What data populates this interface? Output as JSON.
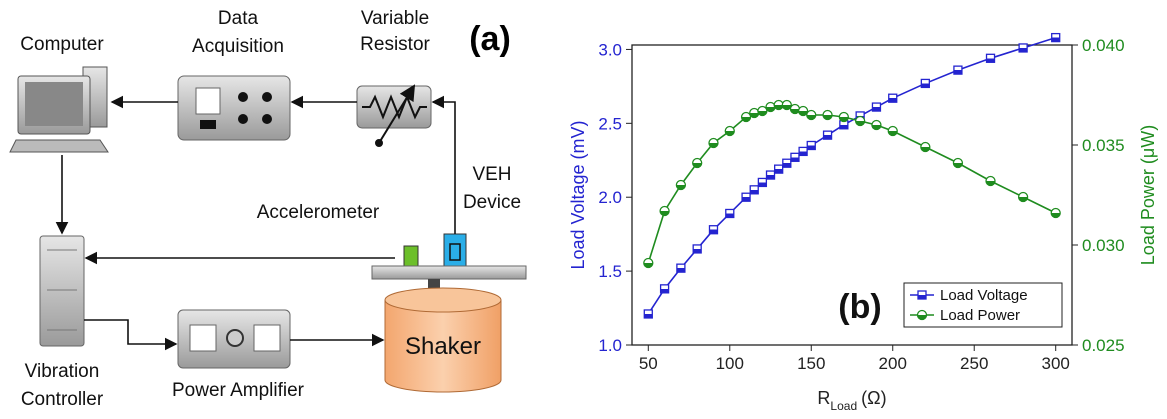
{
  "diagram": {
    "panel_label": "(a)",
    "nodes": [
      {
        "label": [
          "Computer"
        ]
      },
      {
        "label": [
          "Data",
          "Acquisition"
        ]
      },
      {
        "label": [
          "Variable",
          "Resistor"
        ]
      },
      {
        "label": [
          "VEH",
          "Device"
        ]
      },
      {
        "label": [
          "Accelerometer"
        ]
      },
      {
        "label": [
          "Shaker"
        ]
      },
      {
        "label": [
          "Vibration",
          "Controller"
        ]
      },
      {
        "label": [
          "Power Amplifier"
        ]
      }
    ]
  },
  "chart_data": {
    "type": "line",
    "annotation": "(b)",
    "x_label": {
      "main": "R",
      "sub": "Load",
      "unit": "(Ω)"
    },
    "y_label": "Load Voltage (mV)",
    "y2_label": "Load Power (μW)",
    "x": [
      50,
      60,
      70,
      80,
      90,
      100,
      110,
      115,
      120,
      125,
      130,
      135,
      140,
      145,
      150,
      160,
      170,
      180,
      190,
      200,
      220,
      240,
      260,
      280,
      300
    ],
    "series": [
      {
        "name": "Load Voltage",
        "color": "#2424d0",
        "marker": "square",
        "values": [
          1.21,
          1.38,
          1.52,
          1.65,
          1.78,
          1.89,
          2.0,
          2.05,
          2.1,
          2.15,
          2.19,
          2.23,
          2.27,
          2.31,
          2.35,
          2.42,
          2.49,
          2.55,
          2.61,
          2.67,
          2.77,
          2.86,
          2.94,
          3.01,
          3.08
        ]
      },
      {
        "name": "Load Power",
        "color": "#1f8c1f",
        "marker": "circle",
        "axis": "y2",
        "values": [
          0.0291,
          0.0317,
          0.033,
          0.0341,
          0.0351,
          0.0357,
          0.0364,
          0.0366,
          0.0367,
          0.0369,
          0.037,
          0.037,
          0.0368,
          0.0367,
          0.0365,
          0.0365,
          0.0364,
          0.0362,
          0.036,
          0.0357,
          0.0349,
          0.0341,
          0.0332,
          0.0324,
          0.0316
        ]
      }
    ],
    "xlim": [
      40,
      310
    ],
    "xticks": [
      50,
      100,
      150,
      200,
      250,
      300
    ],
    "ylim": [
      1.0,
      3.03
    ],
    "yticks": [
      {
        "value": 1,
        "label": "1.0"
      },
      1.5,
      {
        "value": 2,
        "label": "2.0"
      },
      2.5,
      {
        "value": 3,
        "label": "3.0"
      }
    ],
    "y2lim": [
      0.025,
      0.04
    ],
    "y2ticks": [
      0.025,
      {
        "value": 0.03,
        "label": "0.030"
      },
      0.035,
      {
        "value": 0.04,
        "label": "0.040"
      }
    ],
    "legend": "lower right"
  }
}
